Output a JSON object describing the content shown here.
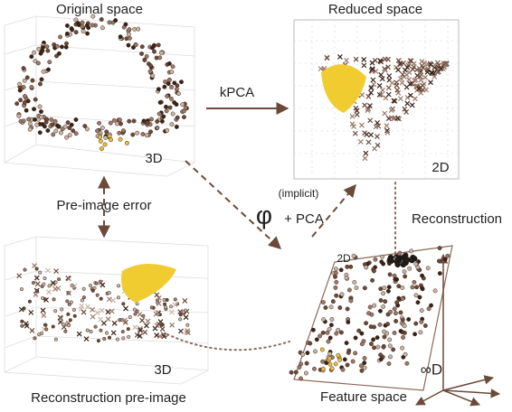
{
  "panels": {
    "original": {
      "title": "Original space",
      "dim": "3D"
    },
    "reduced": {
      "title": "Reduced space",
      "dim": "2D"
    },
    "reconstruction": {
      "title": "Reconstruction pre-image",
      "dim": "3D"
    },
    "feature": {
      "title": "Feature space",
      "plane": "2D",
      "dim": "∞D"
    }
  },
  "edges": {
    "kpca": "kPCA",
    "pre_image_error": "Pre-image error",
    "phi_pca": {
      "note": "(implicit)",
      "symbol": "φ",
      "label": "+ PCA"
    },
    "reconstruction": "Reconstruction"
  }
}
